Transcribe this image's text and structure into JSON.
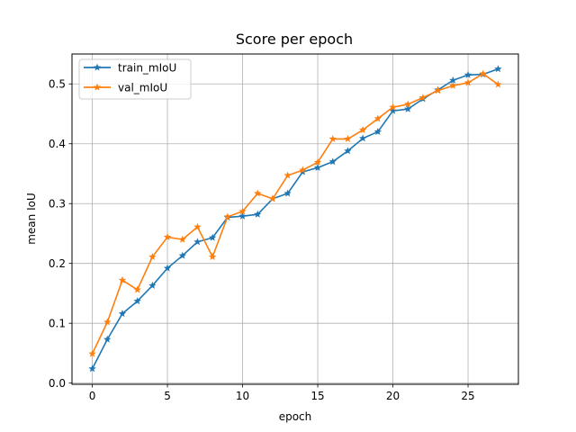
{
  "chart_data": {
    "type": "line",
    "title": "Score per epoch",
    "xlabel": "epoch",
    "ylabel": "mean IoU",
    "xlim": [
      -1.35,
      28.35
    ],
    "ylim": [
      -0.002,
      0.55
    ],
    "xticks": [
      0,
      5,
      10,
      15,
      20,
      25
    ],
    "yticks": [
      0.0,
      0.1,
      0.2,
      0.3,
      0.4,
      0.5
    ],
    "xtick_labels": [
      "0",
      "5",
      "10",
      "15",
      "20",
      "25"
    ],
    "ytick_labels": [
      "0.0",
      "0.1",
      "0.2",
      "0.3",
      "0.4",
      "0.5"
    ],
    "grid": true,
    "legend_position": "top-left",
    "marker": "star",
    "x": [
      0,
      1,
      2,
      3,
      4,
      5,
      6,
      7,
      8,
      9,
      10,
      11,
      12,
      13,
      14,
      15,
      16,
      17,
      18,
      19,
      20,
      21,
      22,
      23,
      24,
      25,
      26,
      27
    ],
    "series": [
      {
        "name": "train_mIoU",
        "color": "#1f77b4",
        "values": [
          0.024,
          0.073,
          0.116,
          0.137,
          0.163,
          0.192,
          0.213,
          0.236,
          0.243,
          0.277,
          0.279,
          0.282,
          0.308,
          0.317,
          0.353,
          0.36,
          0.37,
          0.388,
          0.409,
          0.42,
          0.455,
          0.458,
          0.475,
          0.49,
          0.506,
          0.515,
          0.516,
          0.525
        ]
      },
      {
        "name": "val_mIoU",
        "color": "#ff7f0e",
        "values": [
          0.049,
          0.102,
          0.172,
          0.156,
          0.211,
          0.244,
          0.24,
          0.261,
          0.211,
          0.278,
          0.287,
          0.317,
          0.308,
          0.347,
          0.356,
          0.369,
          0.408,
          0.408,
          0.423,
          0.442,
          0.461,
          0.466,
          0.477,
          0.489,
          0.497,
          0.502,
          0.517,
          0.499
        ]
      }
    ]
  }
}
